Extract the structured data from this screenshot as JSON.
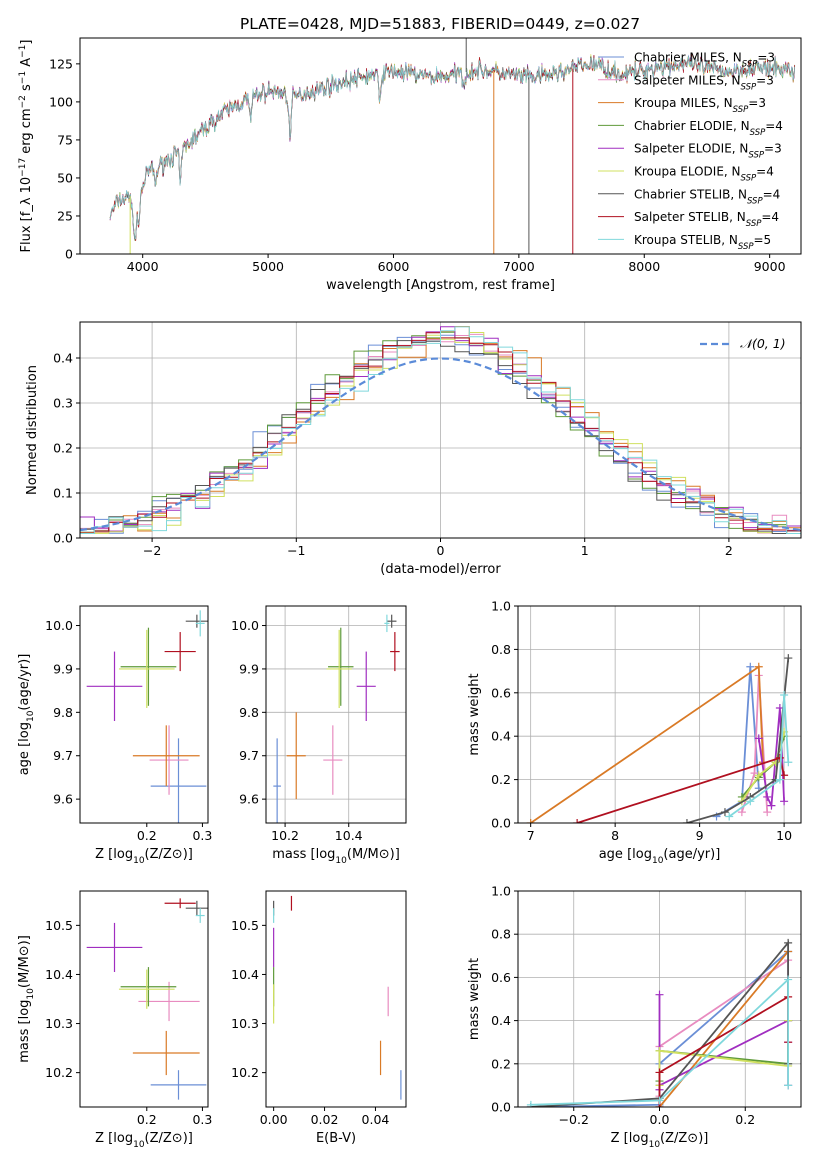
{
  "figure": {
    "title": "PLATE=0428, MJD=51883, FIBERID=0449, z=0.027"
  },
  "colors": {
    "Chabrier MILES": "#6b8fd6",
    "Salpeter MILES": "#e88cc0",
    "Kroupa MILES": "#d97a26",
    "Chabrier ELODIE": "#5f9a3a",
    "Salpeter ELODIE": "#a02ec0",
    "Kroupa ELODIE": "#d0e060",
    "Chabrier STELIB": "#555555",
    "Salpeter STELIB": "#b01020",
    "Kroupa STELIB": "#80d8dc"
  },
  "chart_data": [
    {
      "type": "line",
      "panel": "spectrum",
      "xlabel": "wavelength [Angstrom, rest frame]",
      "ylabel": "Flux [f_λ 10^-17 erg cm^-2 s^-1 A^-1]",
      "xlim": [
        3500,
        9250
      ],
      "ylim": [
        0,
        142
      ],
      "xticks": [
        4000,
        5000,
        6000,
        7000,
        8000,
        9000
      ],
      "yticks": [
        0,
        25,
        50,
        75,
        100,
        125
      ],
      "grid": false,
      "legend_position": "top-right",
      "legend": [
        {
          "model": "Chabrier MILES",
          "n": "3"
        },
        {
          "model": "Salpeter MILES",
          "n": "3"
        },
        {
          "model": "Kroupa MILES",
          "n": "3"
        },
        {
          "model": "Chabrier ELODIE",
          "n": "4"
        },
        {
          "model": "Salpeter ELODIE",
          "n": "3"
        },
        {
          "model": "Kroupa ELODIE",
          "n": "4"
        },
        {
          "model": "Chabrier STELIB",
          "n": "4"
        },
        {
          "model": "Salpeter STELIB",
          "n": "4"
        },
        {
          "model": "Kroupa STELIB",
          "n": "5"
        }
      ],
      "continuum": [
        [
          3740,
          25
        ],
        [
          3800,
          35
        ],
        [
          3900,
          38
        ],
        [
          3950,
          28
        ],
        [
          4000,
          45
        ],
        [
          4050,
          55
        ],
        [
          4100,
          56
        ],
        [
          4200,
          62
        ],
        [
          4300,
          68
        ],
        [
          4400,
          75
        ],
        [
          4500,
          83
        ],
        [
          4600,
          90
        ],
        [
          4700,
          96
        ],
        [
          4800,
          100
        ],
        [
          4900,
          104
        ],
        [
          5000,
          107
        ],
        [
          5100,
          106
        ],
        [
          5200,
          103
        ],
        [
          5300,
          106
        ],
        [
          5400,
          108
        ],
        [
          5500,
          111
        ],
        [
          5600,
          113
        ],
        [
          5700,
          115
        ],
        [
          5800,
          117
        ],
        [
          5900,
          119
        ],
        [
          6000,
          120
        ],
        [
          6100,
          119
        ],
        [
          6200,
          118
        ],
        [
          6300,
          116
        ],
        [
          6400,
          117
        ],
        [
          6500,
          118
        ],
        [
          6600,
          120
        ],
        [
          6700,
          121
        ],
        [
          6800,
          120
        ],
        [
          6900,
          118
        ],
        [
          7000,
          117
        ],
        [
          7100,
          116
        ],
        [
          7200,
          117
        ],
        [
          7300,
          119
        ],
        [
          7400,
          121
        ],
        [
          7500,
          124
        ],
        [
          7600,
          125
        ],
        [
          7700,
          122
        ],
        [
          7800,
          118
        ],
        [
          7900,
          119
        ],
        [
          8000,
          121
        ],
        [
          8100,
          123
        ],
        [
          8200,
          124
        ],
        [
          8300,
          125
        ],
        [
          8400,
          124
        ],
        [
          8500,
          122
        ],
        [
          8600,
          121
        ],
        [
          8700,
          120
        ],
        [
          8800,
          122
        ],
        [
          8900,
          123
        ],
        [
          9000,
          121
        ],
        [
          9100,
          122
        ],
        [
          9200,
          120
        ]
      ],
      "absorption_lines": [
        [
          3934,
          -25
        ],
        [
          3969,
          -15
        ],
        [
          4102,
          -10
        ],
        [
          4300,
          -22
        ],
        [
          4861,
          -14
        ],
        [
          5175,
          -28
        ],
        [
          5890,
          -20
        ],
        [
          6563,
          -8
        ]
      ],
      "spikes": [
        [
          3900,
          0,
          "Kroupa ELODIE"
        ],
        [
          6800,
          0,
          "Kroupa MILES"
        ],
        [
          7080,
          0,
          "Chabrier STELIB"
        ],
        [
          7430,
          0,
          "Salpeter STELIB"
        ],
        [
          6580,
          155,
          "Chabrier STELIB"
        ]
      ]
    },
    {
      "type": "line",
      "panel": "residuals",
      "xlabel": "(data-model)/error",
      "ylabel": "Normed distribution",
      "xlim": [
        -2.5,
        2.5
      ],
      "ylim": [
        0,
        0.48
      ],
      "xticks": [
        -2,
        -1,
        0,
        1,
        2
      ],
      "yticks": [
        0.0,
        0.1,
        0.2,
        0.3,
        0.4
      ],
      "grid": true,
      "legend_position": "top-right",
      "legend_label": "𝒩(0, 1)",
      "bin_width": 0.1,
      "x_start": -2.5
    },
    {
      "type": "scatter",
      "panel": "age-Z",
      "xlabel": "Z [log10(Z/Z⊙)]",
      "ylabel": "age [log10(age/yr)]",
      "xlim": [
        0.08,
        0.31
      ],
      "ylim": [
        9.545,
        10.045
      ],
      "xticks": [
        0.2,
        0.3
      ],
      "yticks": [
        9.6,
        9.7,
        9.8,
        9.9,
        10.0
      ],
      "grid": false,
      "series": [
        {
          "model": "Chabrier MILES",
          "x": 0.257,
          "xerr": 0.05,
          "y": 9.63,
          "yerr": 0.11
        },
        {
          "model": "Salpeter MILES",
          "x": 0.24,
          "xerr": 0.035,
          "y": 9.69,
          "yerr": 0.08
        },
        {
          "model": "Kroupa MILES",
          "x": 0.235,
          "xerr": 0.06,
          "y": 9.7,
          "yerr": 0.07
        },
        {
          "model": "Chabrier ELODIE",
          "x": 0.203,
          "xerr": 0.05,
          "y": 9.905,
          "yerr": 0.09
        },
        {
          "model": "Salpeter ELODIE",
          "x": 0.142,
          "xerr": 0.05,
          "y": 9.86,
          "yerr": 0.08
        },
        {
          "model": "Kroupa ELODIE",
          "x": 0.2,
          "xerr": 0.05,
          "y": 9.9,
          "yerr": 0.09
        },
        {
          "model": "Chabrier STELIB",
          "x": 0.29,
          "xerr": 0.02,
          "y": 10.01,
          "yerr": 0.015
        },
        {
          "model": "Salpeter STELIB",
          "x": 0.26,
          "xerr": 0.028,
          "y": 9.94,
          "yerr": 0.045
        },
        {
          "model": "Kroupa STELIB",
          "x": 0.296,
          "xerr": 0.008,
          "y": 10.005,
          "yerr": 0.03
        }
      ]
    },
    {
      "type": "scatter",
      "panel": "age-mass",
      "xlabel": "mass [log10(M/M⊙)]",
      "ylabel": "",
      "xlim": [
        10.14,
        10.58
      ],
      "ylim": [
        9.545,
        10.045
      ],
      "xticks": [
        10.2,
        10.4
      ],
      "yticks": [
        9.6,
        9.7,
        9.8,
        9.9,
        10.0
      ],
      "grid": true,
      "series": [
        {
          "model": "Chabrier MILES",
          "x": 10.175,
          "xerr": 0.012,
          "y": 9.63,
          "yerr": 0.11
        },
        {
          "model": "Salpeter MILES",
          "x": 10.35,
          "xerr": 0.03,
          "y": 9.69,
          "yerr": 0.08
        },
        {
          "model": "Kroupa MILES",
          "x": 10.235,
          "xerr": 0.03,
          "y": 9.7,
          "yerr": 0.1
        },
        {
          "model": "Chabrier ELODIE",
          "x": 10.375,
          "xerr": 0.04,
          "y": 9.905,
          "yerr": 0.09
        },
        {
          "model": "Salpeter ELODIE",
          "x": 10.455,
          "xerr": 0.03,
          "y": 9.86,
          "yerr": 0.08
        },
        {
          "model": "Kroupa ELODIE",
          "x": 10.37,
          "xerr": 0.04,
          "y": 9.9,
          "yerr": 0.09
        },
        {
          "model": "Chabrier STELIB",
          "x": 10.535,
          "xerr": 0.015,
          "y": 10.01,
          "yerr": 0.015
        },
        {
          "model": "Salpeter STELIB",
          "x": 10.545,
          "xerr": 0.015,
          "y": 9.94,
          "yerr": 0.045
        },
        {
          "model": "Kroupa STELIB",
          "x": 10.52,
          "xerr": 0.008,
          "y": 10.005,
          "yerr": 0.02
        }
      ]
    },
    {
      "type": "line",
      "panel": "weights-age",
      "xlabel": "age [log10(age/yr)]",
      "ylabel": "mass weight",
      "xlim": [
        6.85,
        10.2
      ],
      "ylim": [
        0,
        1.0
      ],
      "xticks": [
        7,
        8,
        9,
        10
      ],
      "yticks": [
        0.0,
        0.2,
        0.4,
        0.6,
        0.8,
        1.0
      ],
      "grid": true,
      "series": [
        {
          "model": "Chabrier MILES",
          "x": [
            9.2,
            9.5,
            9.6,
            9.7
          ],
          "y": [
            0.03,
            0.1,
            0.72,
            0.16
          ]
        },
        {
          "model": "Salpeter MILES",
          "x": [
            9.5,
            9.65,
            9.7,
            9.8
          ],
          "y": [
            0.05,
            0.23,
            0.68,
            0.05
          ]
        },
        {
          "model": "Kroupa MILES",
          "x": [
            7.0,
            9.7,
            9.75
          ],
          "y": [
            0.0,
            0.72,
            0.28
          ]
        },
        {
          "model": "Chabrier ELODIE",
          "x": [
            9.5,
            9.7,
            9.9,
            10.0
          ],
          "y": [
            0.12,
            0.21,
            0.28,
            0.4
          ]
        },
        {
          "model": "Salpeter ELODIE",
          "x": [
            9.7,
            9.8,
            9.85,
            9.95,
            10.0
          ],
          "y": [
            0.39,
            0.12,
            0.08,
            0.53,
            0.1
          ]
        },
        {
          "model": "Kroupa ELODIE",
          "x": [
            9.5,
            9.7,
            9.9,
            10.0
          ],
          "y": [
            0.1,
            0.22,
            0.28,
            0.42
          ]
        },
        {
          "model": "Chabrier STELIB",
          "x": [
            8.85,
            9.3,
            9.6,
            9.9,
            10.05
          ],
          "y": [
            0.0,
            0.05,
            0.12,
            0.2,
            0.76
          ]
        },
        {
          "model": "Salpeter STELIB",
          "x": [
            7.55,
            9.95,
            10.0
          ],
          "y": [
            0.0,
            0.3,
            0.22
          ]
        },
        {
          "model": "Kroupa STELIB",
          "x": [
            9.35,
            9.6,
            9.95,
            10.0,
            10.05
          ],
          "y": [
            0.03,
            0.1,
            0.2,
            0.59,
            0.28
          ]
        }
      ]
    },
    {
      "type": "scatter",
      "panel": "mass-Z",
      "xlabel": "Z [log10(Z/Z⊙)]",
      "ylabel": "mass [log10(M/M⊙)]",
      "xlim": [
        0.08,
        0.31
      ],
      "ylim": [
        10.13,
        10.57
      ],
      "xticks": [
        0.2,
        0.3
      ],
      "yticks": [
        10.2,
        10.3,
        10.4,
        10.5
      ],
      "grid": false,
      "series": [
        {
          "model": "Chabrier MILES",
          "x": 0.257,
          "xerr": 0.05,
          "y": 10.175,
          "yerr": 0.03
        },
        {
          "model": "Salpeter MILES",
          "x": 0.24,
          "xerr": 0.055,
          "y": 10.345,
          "yerr": 0.04
        },
        {
          "model": "Kroupa MILES",
          "x": 0.235,
          "xerr": 0.06,
          "y": 10.24,
          "yerr": 0.045
        },
        {
          "model": "Chabrier ELODIE",
          "x": 0.203,
          "xerr": 0.05,
          "y": 10.375,
          "yerr": 0.04
        },
        {
          "model": "Salpeter ELODIE",
          "x": 0.142,
          "xerr": 0.05,
          "y": 10.455,
          "yerr": 0.05
        },
        {
          "model": "Kroupa ELODIE",
          "x": 0.2,
          "xerr": 0.05,
          "y": 10.37,
          "yerr": 0.04
        },
        {
          "model": "Chabrier STELIB",
          "x": 0.29,
          "xerr": 0.02,
          "y": 10.535,
          "yerr": 0.015
        },
        {
          "model": "Salpeter STELIB",
          "x": 0.26,
          "xerr": 0.028,
          "y": 10.545,
          "yerr": 0.01
        },
        {
          "model": "Kroupa STELIB",
          "x": 0.296,
          "xerr": 0.008,
          "y": 10.52,
          "yerr": 0.015
        }
      ]
    },
    {
      "type": "scatter",
      "panel": "mass-EBV",
      "xlabel": "E(B-V)",
      "ylabel": "",
      "xlim": [
        -0.003,
        0.052
      ],
      "ylim": [
        10.13,
        10.57
      ],
      "xticks": [
        0.0,
        0.02,
        0.04
      ],
      "xtick_labels": [
        "0.00",
        "0.02",
        "0.04"
      ],
      "yticks": [
        10.2,
        10.3,
        10.4,
        10.5
      ],
      "grid": false,
      "series": [
        {
          "model": "Chabrier MILES",
          "x": 0.05,
          "xerr": 0,
          "y": 10.175,
          "yerr": 0.03
        },
        {
          "model": "Salpeter MILES",
          "x": 0.045,
          "xerr": 0,
          "y": 10.345,
          "yerr": 0.03
        },
        {
          "model": "Kroupa MILES",
          "x": 0.042,
          "xerr": 0,
          "y": 10.23,
          "yerr": 0.035
        },
        {
          "model": "Chabrier ELODIE",
          "x": 0.0,
          "xerr": 0,
          "y": 10.375,
          "yerr": 0.04
        },
        {
          "model": "Salpeter ELODIE",
          "x": 0.0,
          "xerr": 0,
          "y": 10.455,
          "yerr": 0.04
        },
        {
          "model": "Kroupa ELODIE",
          "x": 0.0,
          "xerr": 0,
          "y": 10.34,
          "yerr": 0.04
        },
        {
          "model": "Chabrier STELIB",
          "x": 0.0,
          "xerr": 0,
          "y": 10.535,
          "yerr": 0.015
        },
        {
          "model": "Salpeter STELIB",
          "x": 0.007,
          "xerr": 0,
          "y": 10.545,
          "yerr": 0.015
        },
        {
          "model": "Kroupa STELIB",
          "x": 0.0,
          "xerr": 0,
          "y": 10.52,
          "yerr": 0.015
        }
      ]
    },
    {
      "type": "line",
      "panel": "weights-Z",
      "xlabel": "Z [log10(Z/Z⊙)]",
      "ylabel": "mass weight",
      "xlim": [
        -0.33,
        0.33
      ],
      "ylim": [
        0,
        1.0
      ],
      "xticks": [
        -0.2,
        0.0,
        0.2
      ],
      "xtick_labels": [
        "−0.2",
        "0.0",
        "0.2"
      ],
      "yticks": [
        0.0,
        0.2,
        0.4,
        0.6,
        0.8,
        1.0
      ],
      "grid": true,
      "series": [
        {
          "model": "Chabrier MILES",
          "x": [
            -0.3,
            0.0,
            0.0,
            0.3,
            0.3
          ],
          "y": [
            0.0,
            0.01,
            0.2,
            0.72,
            0.1
          ]
        },
        {
          "model": "Salpeter MILES",
          "x": [
            0.0,
            0.0,
            0.3,
            0.3
          ],
          "y": [
            0.05,
            0.28,
            0.68,
            0.1
          ]
        },
        {
          "model": "Kroupa MILES",
          "x": [
            0.0,
            0.3
          ],
          "y": [
            0.0,
            0.72
          ]
        },
        {
          "model": "Chabrier ELODIE",
          "x": [
            0.0,
            0.0,
            0.3,
            0.3
          ],
          "y": [
            0.12,
            0.26,
            0.2,
            0.4
          ]
        },
        {
          "model": "Salpeter ELODIE",
          "x": [
            0.0,
            0.0,
            0.0,
            0.3,
            0.3
          ],
          "y": [
            0.52,
            0.08,
            0.1,
            0.4,
            0.3
          ]
        },
        {
          "model": "Kroupa ELODIE",
          "x": [
            0.0,
            0.0,
            0.3,
            0.3
          ],
          "y": [
            0.1,
            0.26,
            0.19,
            0.4
          ]
        },
        {
          "model": "Chabrier STELIB",
          "x": [
            -0.3,
            0.0,
            0.3,
            0.3
          ],
          "y": [
            0.0,
            0.04,
            0.76,
            0.2
          ]
        },
        {
          "model": "Salpeter STELIB",
          "x": [
            0.0,
            0.0,
            0.3,
            0.3
          ],
          "y": [
            0.0,
            0.16,
            0.51,
            0.3
          ]
        },
        {
          "model": "Kroupa STELIB",
          "x": [
            -0.3,
            0.0,
            0.3,
            0.3
          ],
          "y": [
            0.01,
            0.03,
            0.59,
            0.1
          ]
        }
      ]
    }
  ]
}
